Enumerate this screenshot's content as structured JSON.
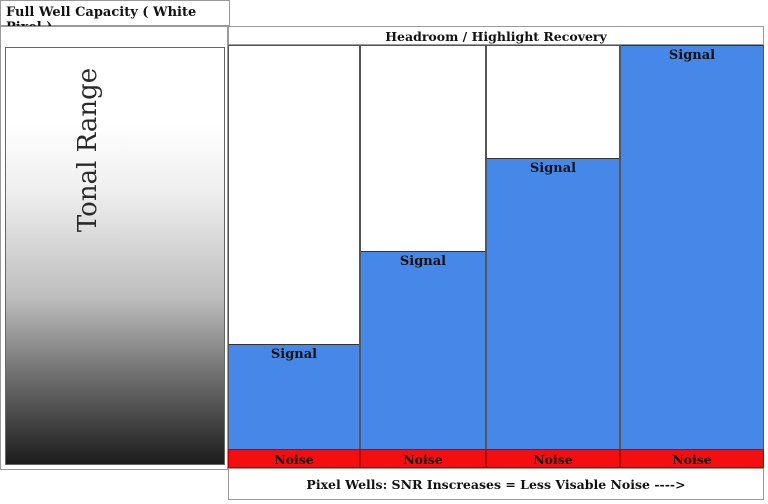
{
  "header": {
    "capacity_title": "Full Well Capacity ( White Pixel )",
    "headroom_title": "Headroom / Highlight Recovery"
  },
  "tonal_range": {
    "label": "Tonal Range"
  },
  "wells": [
    {
      "signal_label": "Signal",
      "noise_label": "Noise",
      "fill_fraction": 0.26
    },
    {
      "signal_label": "Signal",
      "noise_label": "Noise",
      "fill_fraction": 0.49
    },
    {
      "signal_label": "Signal",
      "noise_label": "Noise",
      "fill_fraction": 0.72
    },
    {
      "signal_label": "Signal",
      "noise_label": "Noise",
      "fill_fraction": 1.0
    }
  ],
  "footer": {
    "caption": "Pixel Wells: SNR Inscreases = Less Visable Noise ---->"
  },
  "colors": {
    "signal": "#4688e8",
    "noise": "#f30f0f"
  }
}
